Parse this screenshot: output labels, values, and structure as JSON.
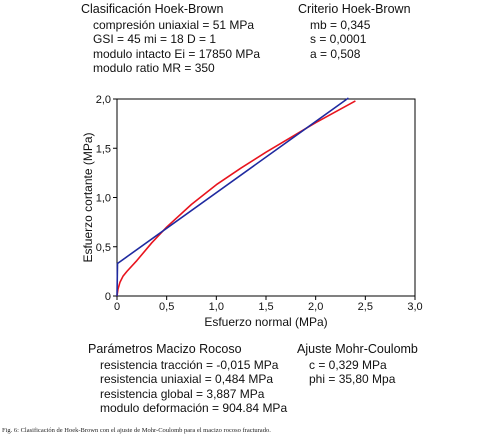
{
  "top_left": {
    "heading": "Clasificación Hoek-Brown",
    "lines": [
      "compresión uniaxial = 51 MPa",
      "GSI = 45   mi = 18   D = 1",
      "modulo intacto Ei = 17850 MPa",
      "modulo ratio MR = 350"
    ]
  },
  "top_right": {
    "heading": "Criterio Hoek-Brown",
    "lines": [
      "mb = 0,345",
      "s = 0,0001",
      "a = 0,508"
    ]
  },
  "bottom_left": {
    "heading": "Parámetros Macizo Rocoso",
    "lines": [
      "resistencia tracción = -0,015 MPa",
      "resistencia uniaxial = 0,484 MPa",
      "resistencia global = 3,887 MPa",
      "modulo deformación = 904.84 MPa"
    ]
  },
  "bottom_right": {
    "heading": "Ajuste Mohr-Coulomb",
    "lines": [
      "c = 0,329 MPa",
      "phi = 35,80 Mpa"
    ]
  },
  "caption": "Fig. 6: Clasificación de Hoek-Brown con el ajuste de Mohr-Coulomb para el macizo rocoso fracturado.",
  "chart_data": {
    "type": "line",
    "xlabel": "Esfuerzo normal (MPa)",
    "ylabel": "Esfuerzo cortante (MPa)",
    "xlim": [
      0,
      3.0
    ],
    "ylim": [
      0,
      2.0
    ],
    "x_ticks": [
      "0",
      "0,5",
      "1,0",
      "1,5",
      "2,0",
      "2,5",
      "3,0"
    ],
    "y_ticks": [
      "0",
      "0,5",
      "1,0",
      "1,5",
      "2,0"
    ],
    "grid": false,
    "colors": {
      "hoek_brown": "#e8141e",
      "mohr_coulomb": "#1f2aa0"
    },
    "series": [
      {
        "x": [
          0,
          0.01,
          0.03,
          0.06,
          0.1,
          0.2,
          0.35,
          0.5,
          0.75,
          1.0,
          1.25,
          1.5,
          1.75,
          2.0,
          2.2,
          2.4
        ],
        "y": [
          0,
          0.07,
          0.14,
          0.2,
          0.25,
          0.36,
          0.54,
          0.7,
          0.93,
          1.13,
          1.3,
          1.46,
          1.61,
          1.76,
          1.87,
          1.98
        ]
      },
      {
        "x": [
          0,
          0.005,
          2.33
        ],
        "y": [
          0,
          0.33,
          2.01
        ]
      }
    ]
  }
}
